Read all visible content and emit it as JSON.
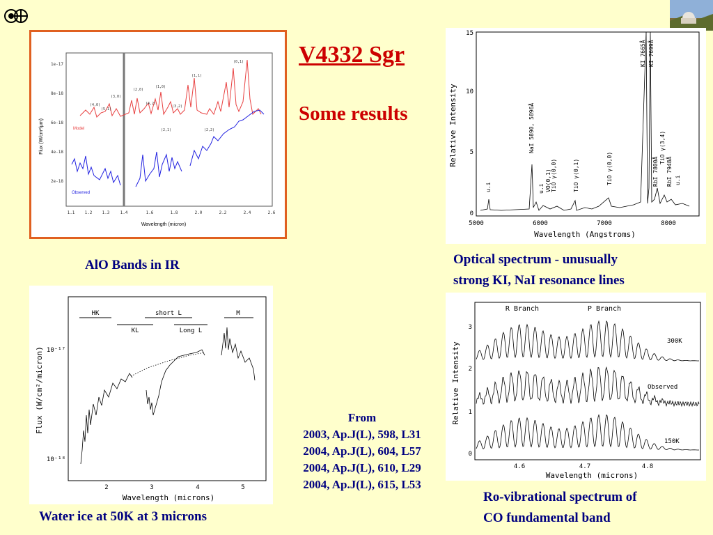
{
  "slide": {
    "title": "V4332 Sgr",
    "subtitle": "Some results",
    "colors": {
      "background": "#ffffcc",
      "title": "#cc0000",
      "caption": "#000080",
      "frame": "#e06020"
    }
  },
  "logo": {
    "icon": "circled-cross-logo-icon"
  },
  "photo": {
    "icon": "observatory-photo-icon"
  },
  "captions": {
    "alo": "AlO Bands in IR",
    "optical_1": "Optical spectrum -  unusually",
    "optical_2": "strong KI, NaI  resonance lines",
    "ice": "Water ice at 50K at 3 microns",
    "co_1": "Ro-vibrational spectrum of",
    "co_2": "CO fundamental  band"
  },
  "references": {
    "heading": "From",
    "lines": [
      "2003, Ap.J(L), 598,  L31",
      "2004, Ap.J(L), 604,  L57",
      "2004, Ap.J(L), 610,  L29",
      "2004, Ap.J(L), 615,  L53"
    ]
  },
  "chart_data": [
    {
      "type": "line",
      "id": "alo",
      "xlabel": "Wavelength (micron)",
      "ylabel": "Flux (W/cm²/μm)",
      "x_ticks": [
        "1.1",
        "1.2",
        "1.3",
        "1.4",
        "1.6",
        "1.8",
        "2.0",
        "2.2",
        "2.4",
        "2.6"
      ],
      "y_ticks": [
        "2e-18",
        "4e-18",
        "6e-18",
        "8e-18",
        "1e-17"
      ],
      "series": [
        {
          "name": "Model"
        },
        {
          "name": "Observed"
        }
      ],
      "band_labels": [
        "(4,0)",
        "(5,1)",
        "(3,0)",
        "(2,0)",
        "(4,2)",
        "(1,0)",
        "(3,2)",
        "(2,1)",
        "(1,1)",
        "(2,2)",
        "(0,1)"
      ]
    },
    {
      "type": "line",
      "id": "optical",
      "xlabel": "Wavelength (Angstroms)",
      "ylabel": "Relative Intensity",
      "xlim": [
        5000,
        8500
      ],
      "ylim": [
        0,
        15
      ],
      "x_ticks": [
        "5000",
        "6000",
        "7000",
        "8000"
      ],
      "y_ticks": [
        "0",
        "5",
        "10",
        "15"
      ],
      "line_labels": [
        "u.i",
        "NaI 5890, 5896Å",
        "u.i",
        "VO(0,1)",
        "TiO γ(0,0)",
        "TiO γ(0,1)",
        "TiO γ(0,0)",
        "KI 7665Å",
        "KI 7699Å",
        "RbI 7800Å",
        "TiO γ(3,4)",
        "RbI 7948Å",
        "u.i"
      ]
    },
    {
      "type": "line",
      "id": "ice",
      "xlabel": "Wavelength (microns)",
      "ylabel": "Flux (W/cm²/micron)",
      "x_ticks": [
        "2",
        "3",
        "4",
        "5"
      ],
      "y_ticks": [
        "10⁻¹⁷",
        "10⁻¹⁸"
      ],
      "bands": [
        "HK",
        "short L",
        "KL",
        "Long L",
        "M"
      ]
    },
    {
      "type": "line",
      "id": "co",
      "xlabel": "Wavelength (microns)",
      "ylabel": "Relative Intensity",
      "x_ticks": [
        "4.6",
        "4.7",
        "4.8"
      ],
      "y_ticks": [
        "0",
        "1",
        "2",
        "3"
      ],
      "branches": [
        "R Branch",
        "P Branch"
      ],
      "series": [
        {
          "name": "300K"
        },
        {
          "name": "Observed"
        },
        {
          "name": "150K"
        }
      ]
    }
  ]
}
